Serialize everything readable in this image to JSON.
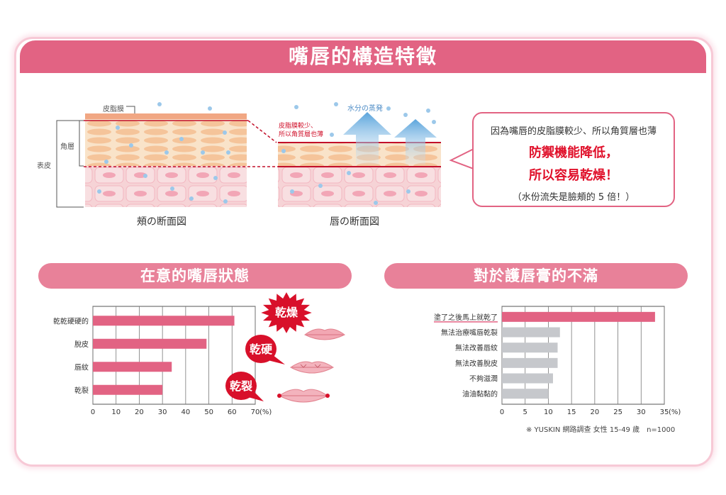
{
  "title": "嘴唇的構造特徵",
  "diagram": {
    "label_sebum": "皮脂膜",
    "label_stratum": "角層",
    "label_epidermis": "表皮",
    "label_less_sebum_line1": "皮脂膜較少、",
    "label_less_sebum_line2": "所以角質層也薄",
    "label_evaporation": "水分の蒸発",
    "caption_cheek": "頰の断面図",
    "caption_lip": "唇の断面図"
  },
  "bubble": {
    "line1": "因為嘴唇的皮脂膜較少、所以角質層也薄",
    "line2": "防禦機能降低，",
    "line3": "所以容易乾燥！",
    "line4": "（水份流失是臉頰的 5 倍！）"
  },
  "left_section": {
    "title": "在意的嘴唇狀態",
    "callout_dry": "乾燥",
    "callout_hard": "乾硬",
    "callout_crack": "乾裂"
  },
  "right_section": {
    "title": "對於護唇膏的不滿"
  },
  "footnote": "※ YUSKIN 網路調查 女性 15-49 歲　n=1000",
  "colors": {
    "accent_pink": "#e26383",
    "bar_pink": "#e26383",
    "bar_gray": "#c6c8cc",
    "callout_red": "#e0102a"
  },
  "chart_data": [
    {
      "type": "bar",
      "orientation": "horizontal",
      "categories": [
        "乾乾硬硬的",
        "脫皮",
        "唇紋",
        "乾裂"
      ],
      "values": [
        61,
        49,
        34,
        30
      ],
      "xlim": [
        0,
        70
      ],
      "xticks": [
        0,
        10,
        20,
        30,
        40,
        50,
        60,
        70
      ],
      "unit_label": "(%)",
      "grid": true
    },
    {
      "type": "bar",
      "orientation": "horizontal",
      "categories": [
        "塗了之後馬上就乾了",
        "無法治療嘴唇乾裂",
        "無法改善唇紋",
        "無法改善脫皮",
        "不夠滋潤",
        "油油黏黏的"
      ],
      "values": [
        33,
        12.5,
        12,
        12,
        11,
        10
      ],
      "highlight_index": 0,
      "xlim": [
        0,
        35
      ],
      "xticks": [
        0,
        5,
        10,
        15,
        20,
        25,
        30,
        35
      ],
      "unit_label": "(%)",
      "grid": true
    }
  ]
}
